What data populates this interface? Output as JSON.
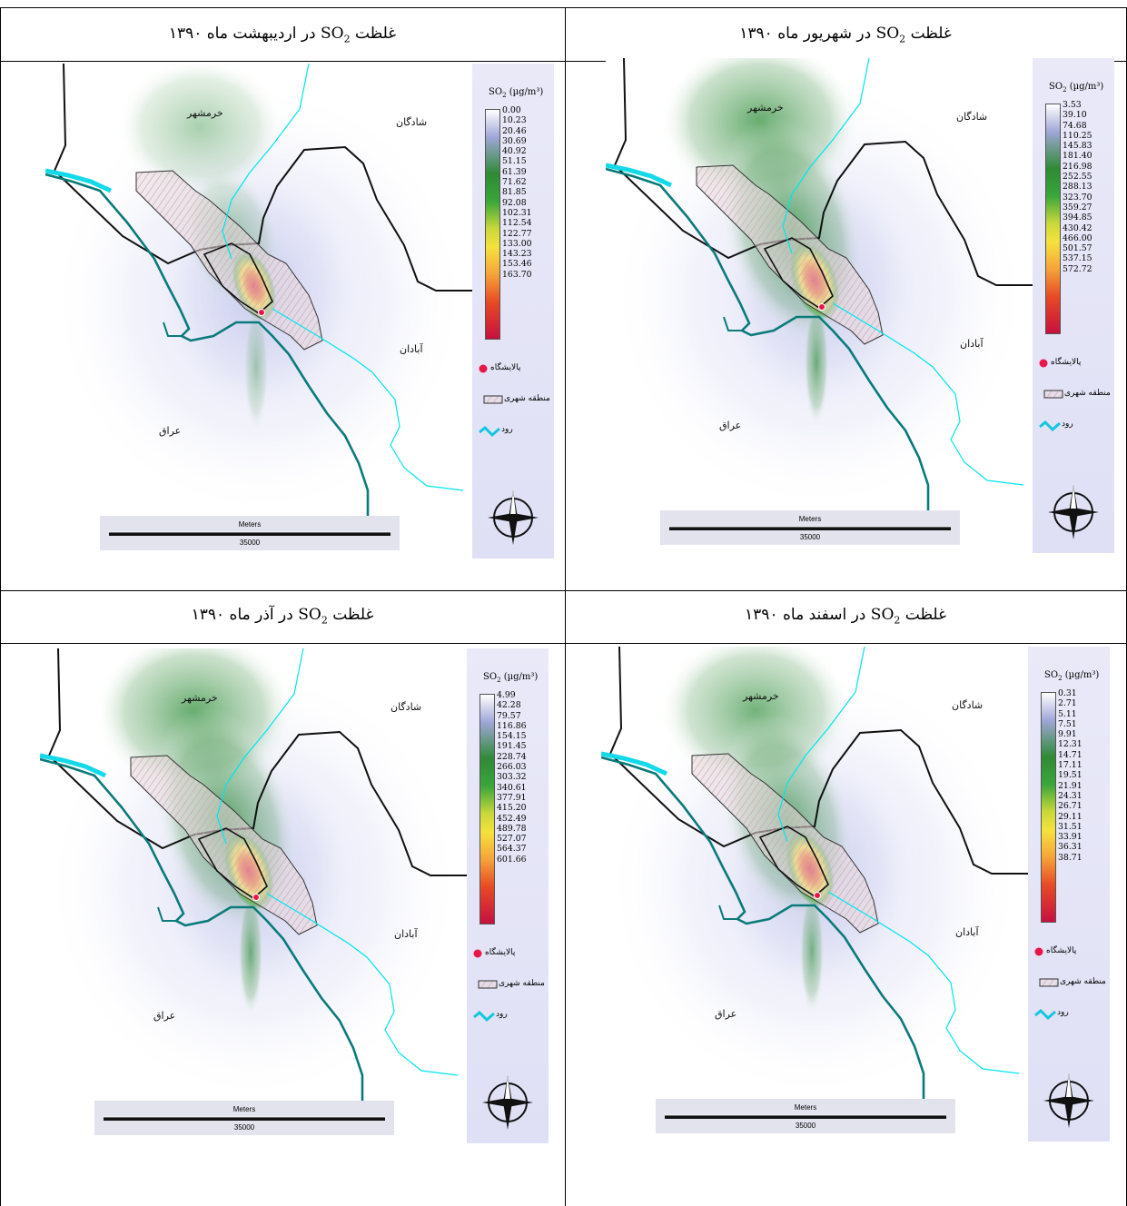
{
  "panels": [
    {
      "id": "p1",
      "title_prefix": "غلظت",
      "title_suffix": "در اردیبهشت ماه ۱۳۹۰",
      "legend_values": [
        "0.00",
        "10.23",
        "20.46",
        "30.69",
        "40.92",
        "51.15",
        "61.39",
        "71.62",
        "81.85",
        "92.08",
        "102.31",
        "112.54",
        "122.77",
        "133.00",
        "143.23",
        "153.46",
        "163.70"
      ]
    },
    {
      "id": "p2",
      "title_prefix": "غلظت",
      "title_suffix": "در شهریور ماه ۱۳۹۰",
      "legend_values": [
        "3.53",
        "39.10",
        "74.68",
        "110.25",
        "145.83",
        "181.40",
        "216.98",
        "252.55",
        "288.13",
        "323.70",
        "359.27",
        "394.85",
        "430.42",
        "466.00",
        "501.57",
        "537.15",
        "572.72"
      ]
    },
    {
      "id": "p3",
      "title_prefix": "غلظت",
      "title_suffix": "در آذر ماه ۱۳۹۰",
      "legend_values": [
        "4.99",
        "42.28",
        "79.57",
        "116.86",
        "154.15",
        "191.45",
        "228.74",
        "266.03",
        "303.32",
        "340.61",
        "377.91",
        "415.20",
        "452.49",
        "489.78",
        "527.07",
        "564.37",
        "601.66"
      ]
    },
    {
      "id": "p4",
      "title_prefix": "غلظت",
      "title_suffix": "در اسفند ماه ۱۳۹۰",
      "legend_values": [
        "0.31",
        "2.71",
        "5.11",
        "7.51",
        "9.91",
        "12.31",
        "14.71",
        "17.11",
        "19.51",
        "21.91",
        "24.31",
        "26.71",
        "29.11",
        "31.51",
        "33.91",
        "36.31",
        "38.71"
      ]
    }
  ],
  "common": {
    "so2": "SO",
    "so2_sub": "2",
    "legend_unit_prefix": "SO",
    "legend_unit_sub": "2",
    "legend_unit_suffix": " (µg/m³)",
    "refinery_label": "پالایشگاه",
    "urban_label": "منطقه شهری",
    "river_label": "رود",
    "place_khorramshahr": "خرمشهر",
    "place_shadegan": "شادگان",
    "place_abadan": "آبادان",
    "place_iraq": "عراق",
    "scale_unit": "Meters",
    "scale_value": "35000"
  },
  "colors": {
    "legend_bg": "#e4e4f6",
    "river": "#00e5ee",
    "river_main": "#0b7a7a",
    "refinery": "#e8174a"
  }
}
